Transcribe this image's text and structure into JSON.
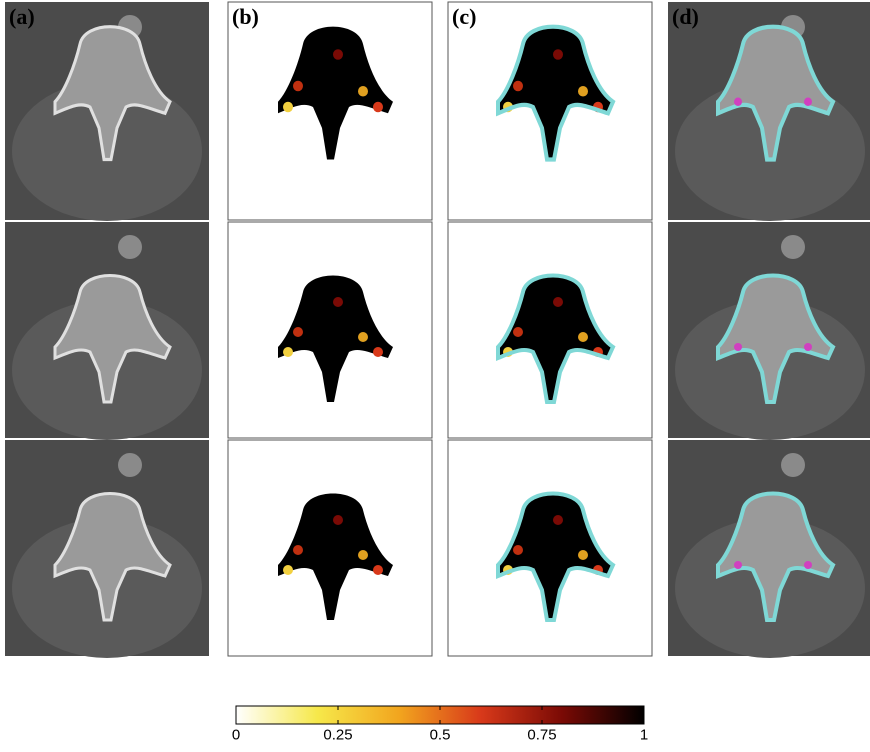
{
  "panels": [
    {
      "label": "(a)"
    },
    {
      "label": "(b)"
    },
    {
      "label": "(c)"
    },
    {
      "label": "(d)"
    }
  ],
  "colorbar": {
    "lim": [
      0,
      1
    ],
    "ticks": [
      0,
      0.25,
      0.5,
      0.75,
      1
    ],
    "colormap": [
      "#ffffff",
      "#f6e84a",
      "#f2a51e",
      "#d8391a",
      "#7a0a05",
      "#000000"
    ]
  }
}
